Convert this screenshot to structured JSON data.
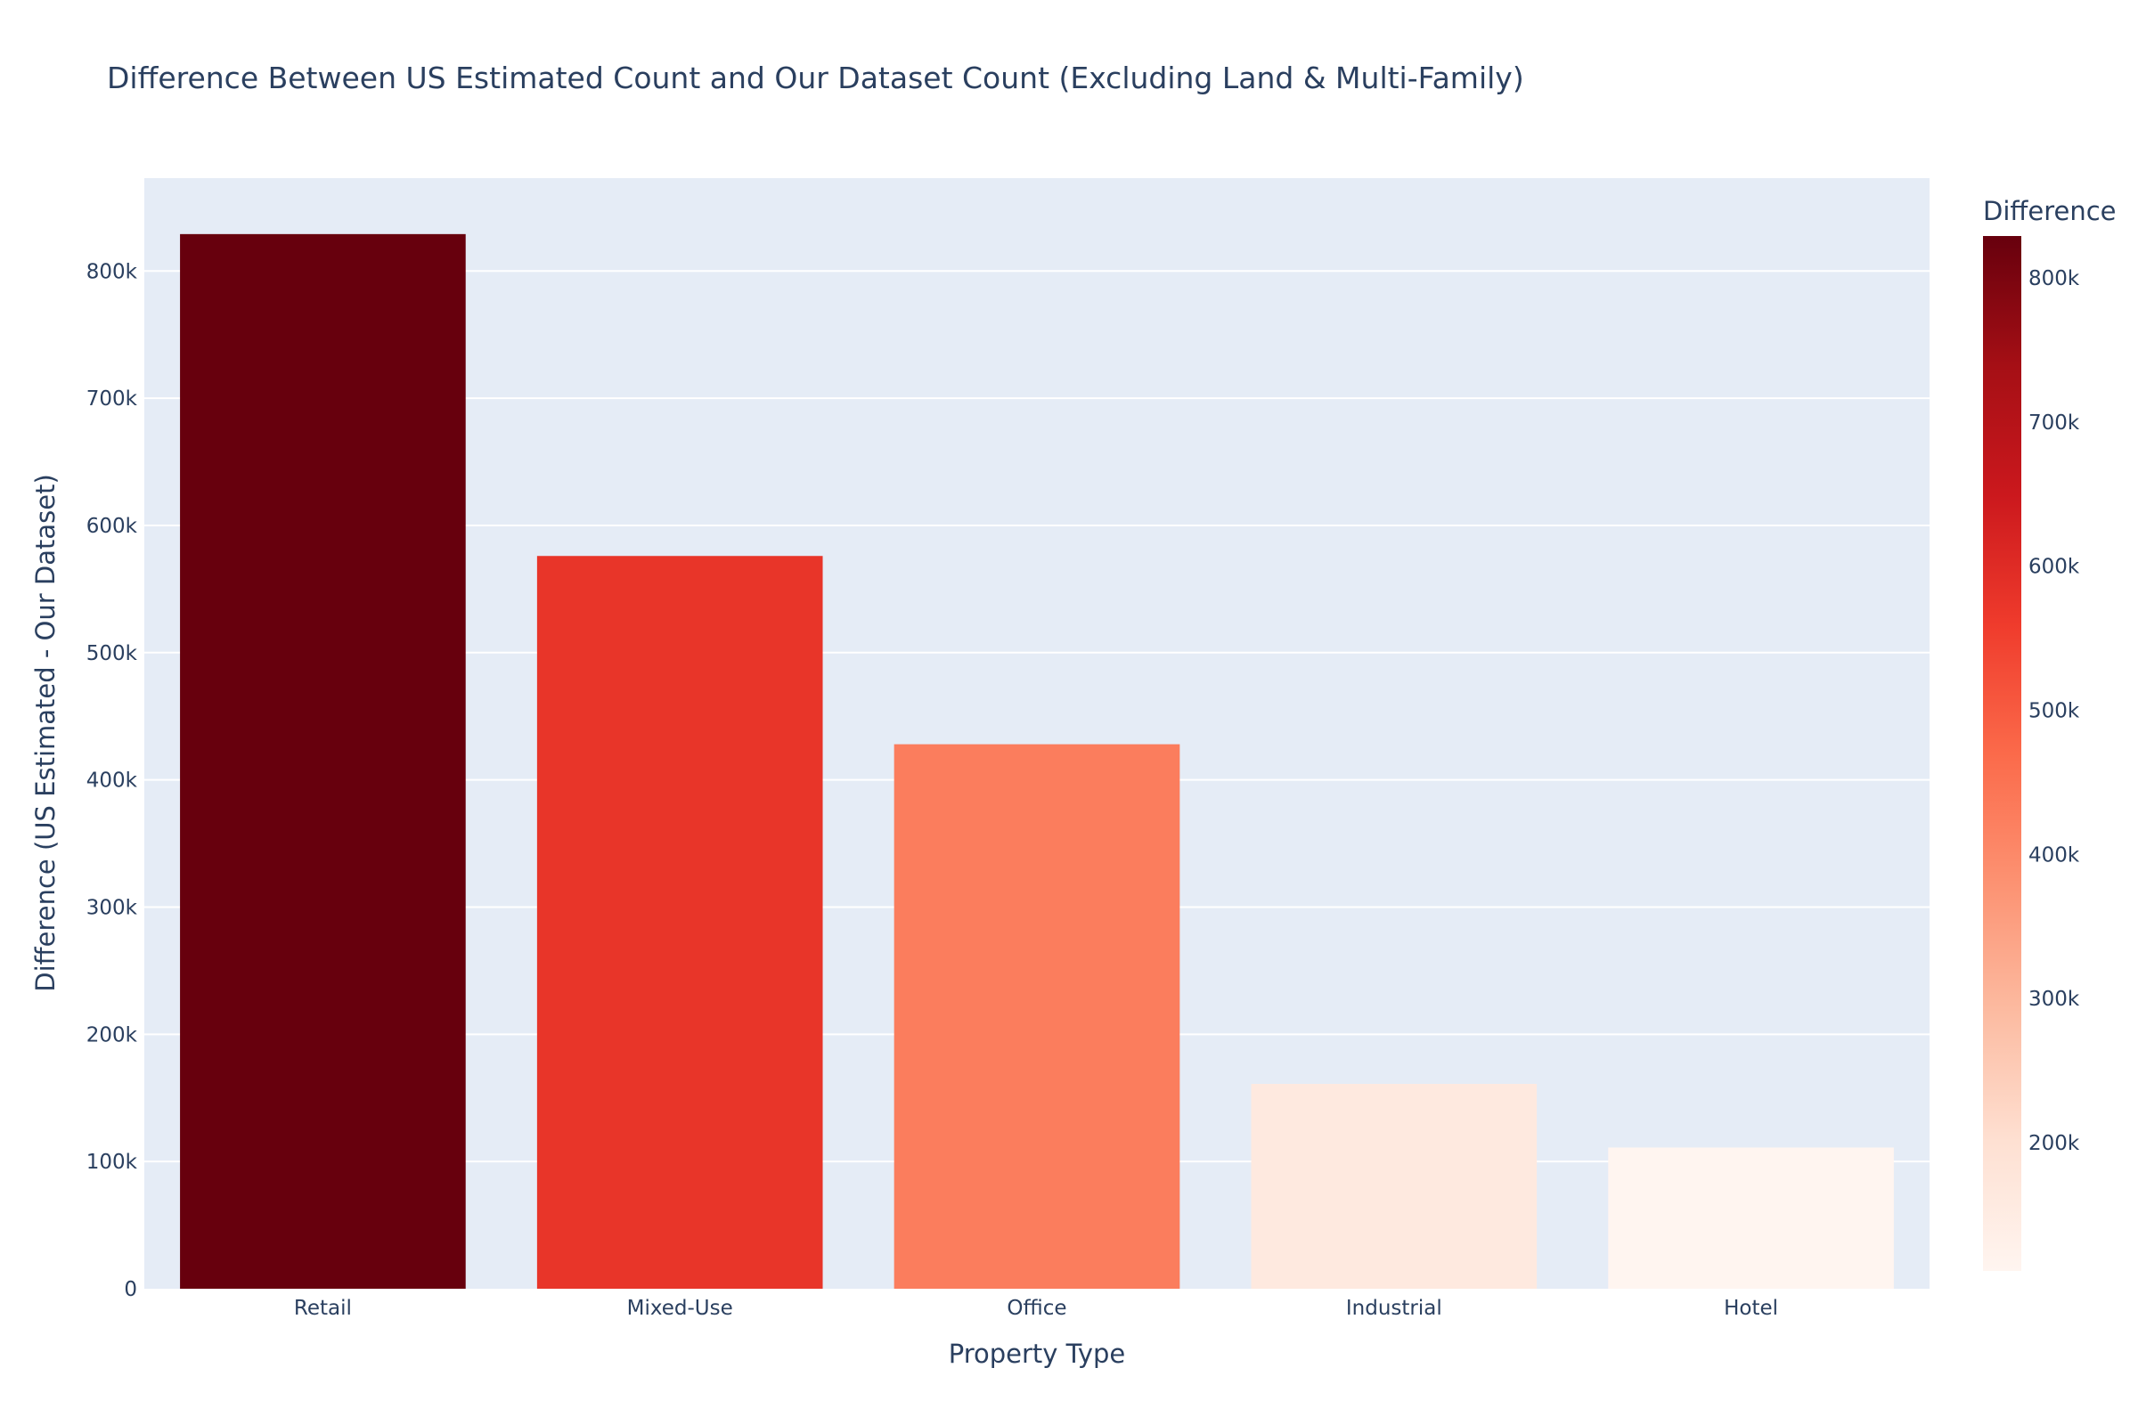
{
  "chart_data": {
    "type": "bar",
    "title": "Difference Between US Estimated Count and Our Dataset Count (Excluding Land & Multi-Family)",
    "xlabel": "Property Type",
    "ylabel": "Difference (US Estimated - Our Dataset)",
    "categories": [
      "Retail",
      "Mixed-Use",
      "Office",
      "Industrial",
      "Hotel"
    ],
    "values": [
      829000,
      576000,
      428000,
      161000,
      111000
    ],
    "ylim": [
      0,
      873000
    ],
    "yticks": [
      0,
      100000,
      200000,
      300000,
      400000,
      500000,
      600000,
      700000,
      800000
    ],
    "ytick_labels": [
      "0",
      "100k",
      "200k",
      "300k",
      "400k",
      "500k",
      "600k",
      "700k",
      "800k"
    ],
    "grid": true,
    "colorscale": "Reds",
    "colorbar": {
      "title": "Difference",
      "range": [
        111000,
        829000
      ],
      "ticks": [
        200000,
        300000,
        400000,
        500000,
        600000,
        700000,
        800000
      ],
      "tick_labels": [
        "200k",
        "300k",
        "400k",
        "500k",
        "600k",
        "700k",
        "800k"
      ]
    },
    "colors": {
      "plot_bg": "#e5ecf6",
      "grid": "#ffffff",
      "text": "#2a3f5f",
      "scale": [
        "#fff5f0",
        "#fee0d2",
        "#fcbba1",
        "#fc9272",
        "#fb6a4a",
        "#ef3b2c",
        "#cb181d",
        "#a50f15",
        "#67000d"
      ]
    }
  }
}
